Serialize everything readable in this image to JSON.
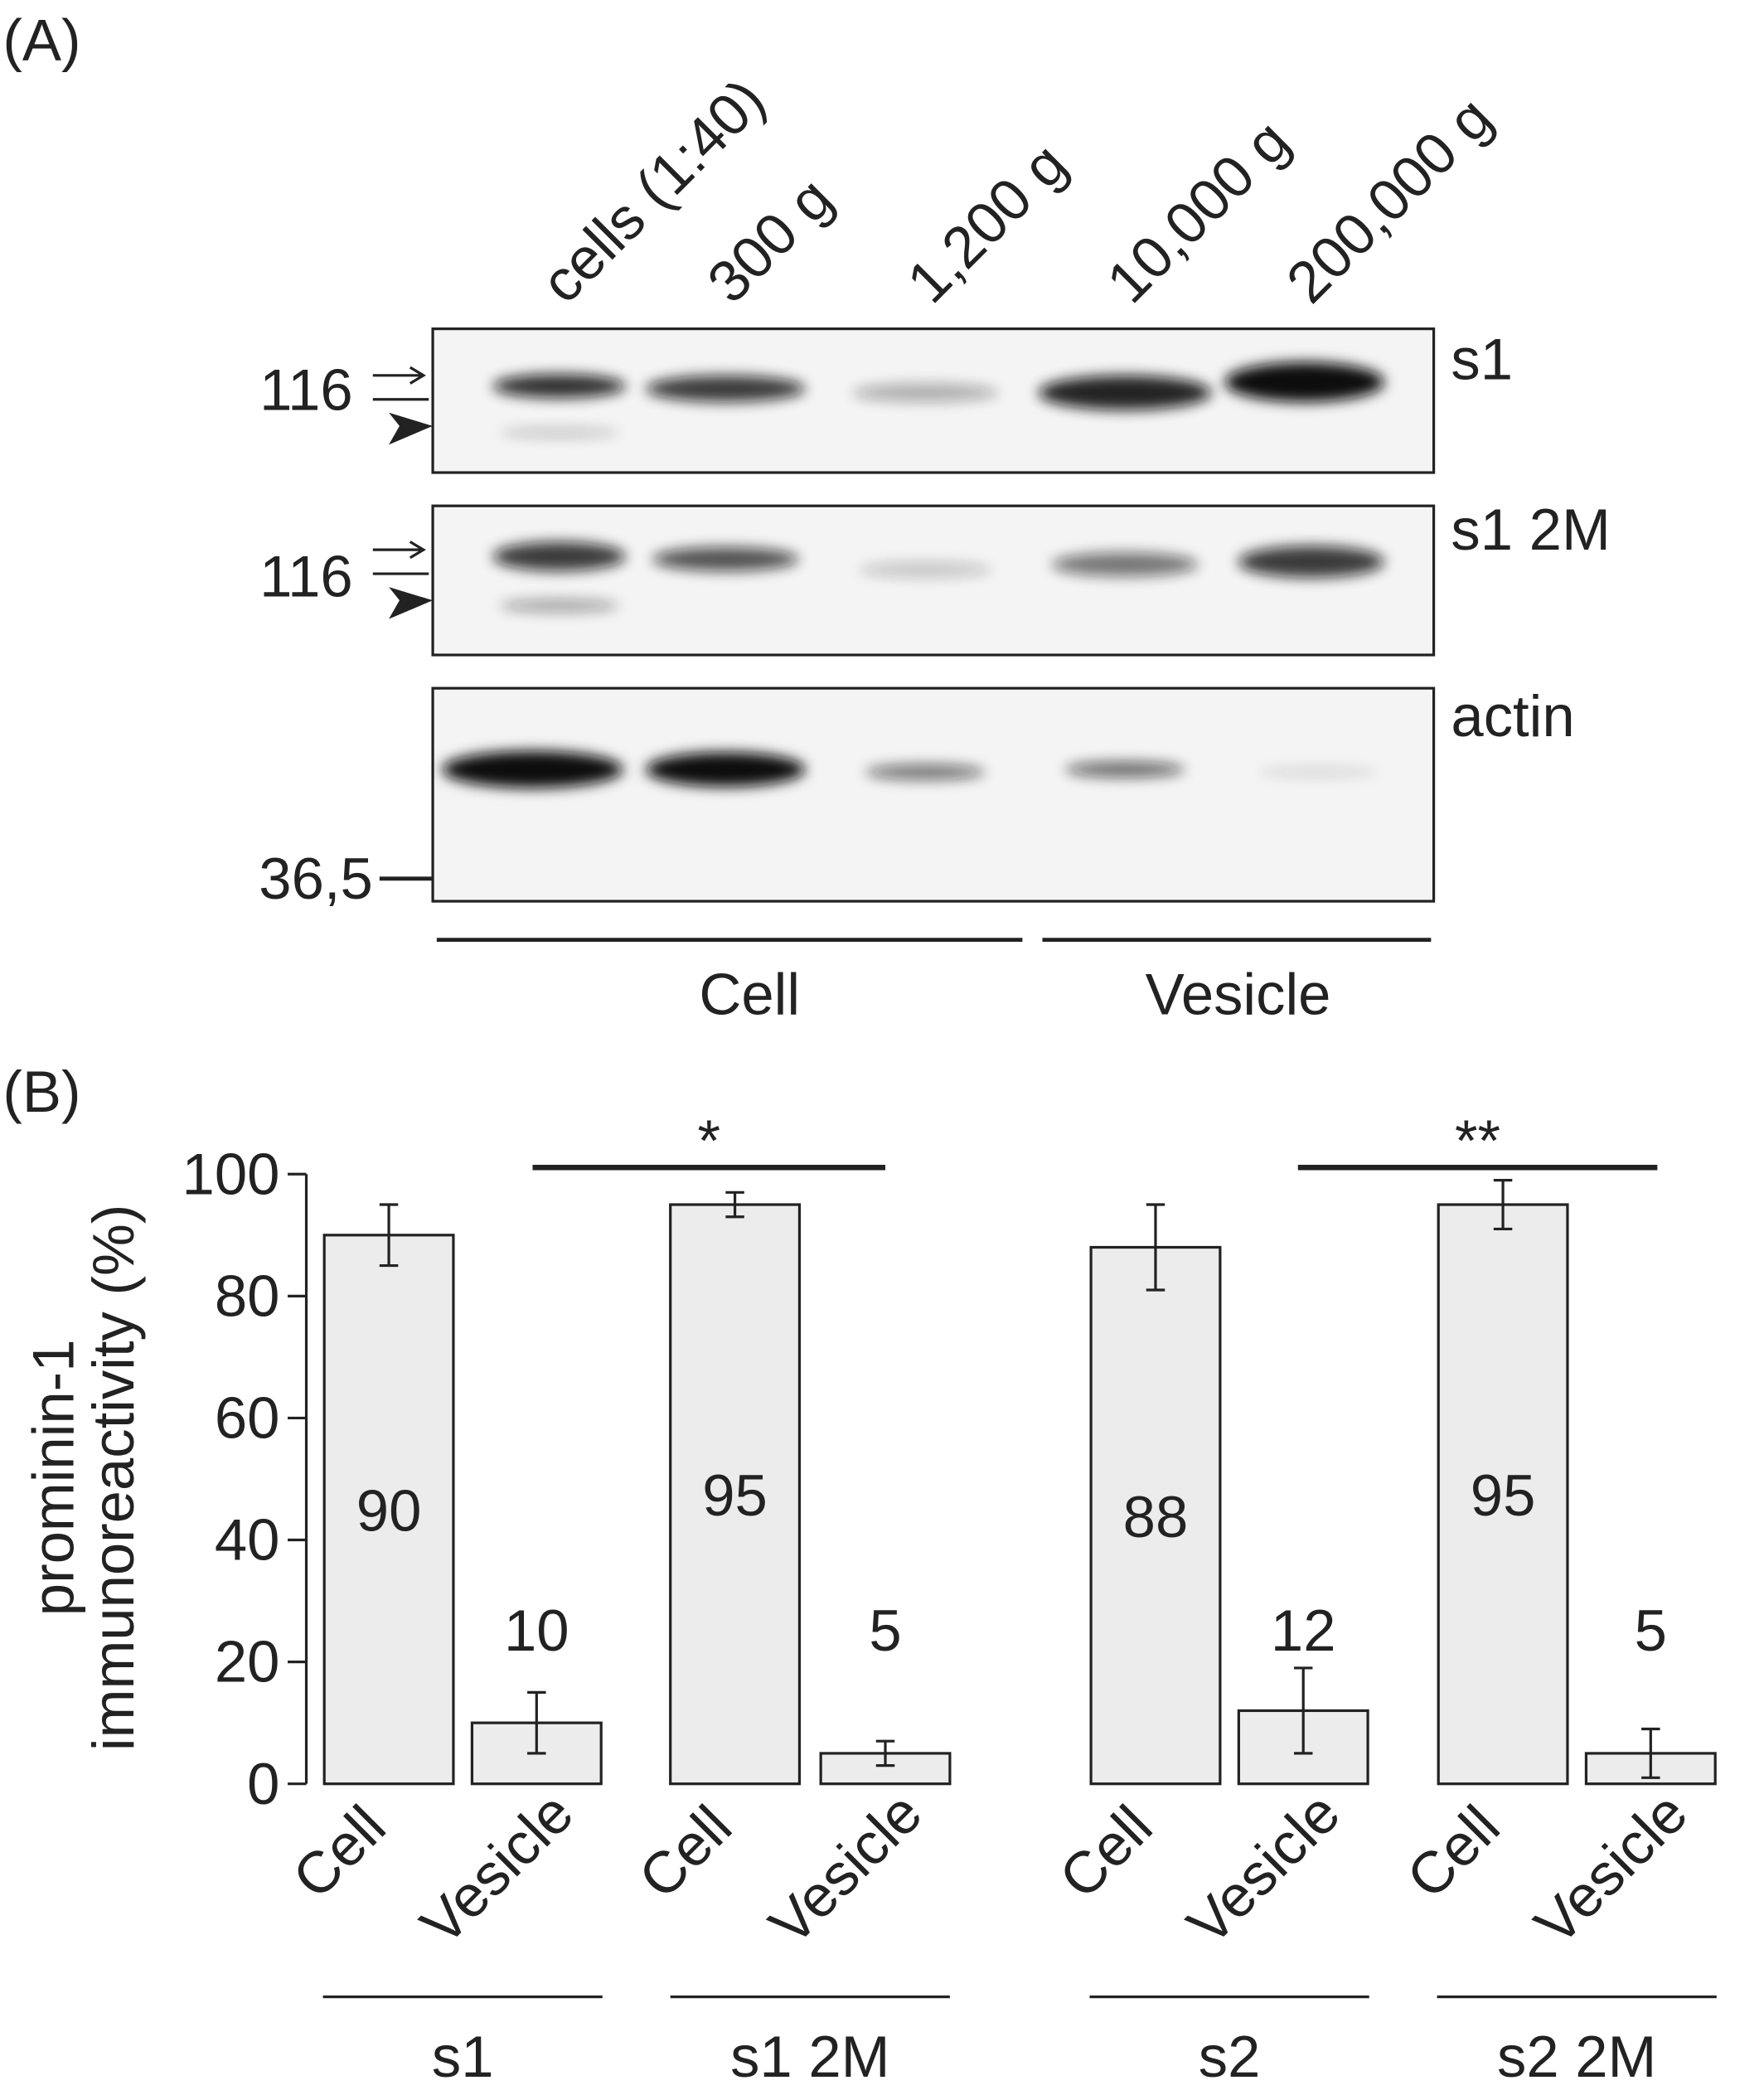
{
  "panel_a": {
    "label": "(A)",
    "lanes": [
      "cells (1:40)",
      "300 g",
      "1,200 g",
      "10,000 g",
      "200,000 g"
    ],
    "blots": [
      {
        "name": "s1",
        "marker": "116"
      },
      {
        "name": "s1 2M",
        "marker": "116"
      },
      {
        "name": "actin",
        "marker": "36,5"
      }
    ],
    "groups": [
      "Cell",
      "Vesicle"
    ]
  },
  "chart_data": {
    "type": "bar",
    "panel_label": "(B)",
    "ylabel": [
      "prominin-1",
      "immunoreactivity (%)"
    ],
    "categories": [
      "Cell",
      "Vesicle",
      "Cell",
      "Vesicle",
      "Cell",
      "Vesicle",
      "Cell",
      "Vesicle"
    ],
    "groups": [
      "s1",
      "s1 2M",
      "s2",
      "s2 2M"
    ],
    "values": [
      90,
      10,
      95,
      5,
      88,
      12,
      95,
      5
    ],
    "errors": [
      5,
      5,
      2,
      2,
      7,
      7,
      4,
      4
    ],
    "color": "#ececec",
    "annotations": [
      "*",
      "**"
    ],
    "ylim": [
      0,
      100
    ],
    "yticks": [
      0,
      20,
      40,
      60,
      80,
      100
    ]
  }
}
